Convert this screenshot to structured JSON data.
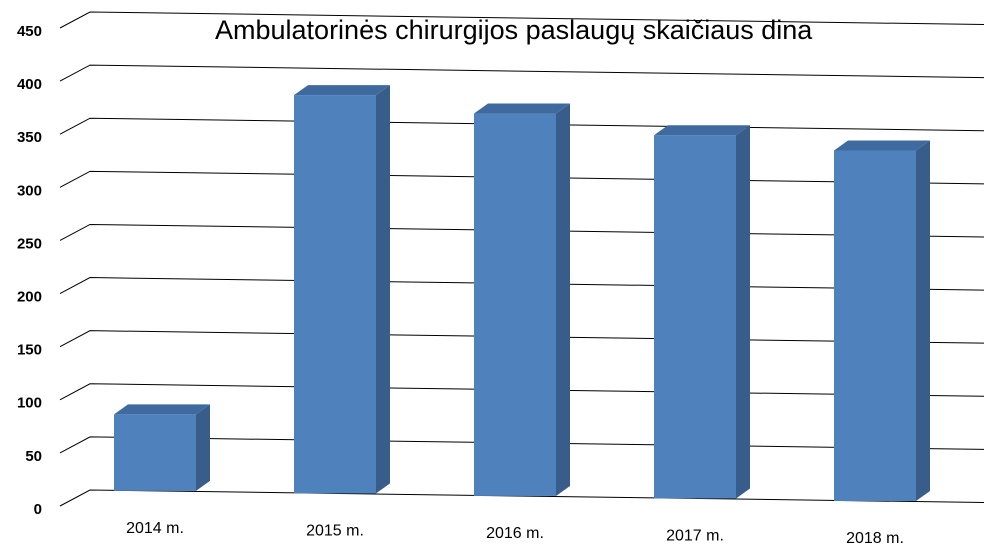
{
  "chart_data": {
    "type": "bar3d",
    "title": "Ambulatorinės  chirurgijos paslaugų skaičiaus dina",
    "categories": [
      "2014 m.",
      "2015 m.",
      "2016 m.",
      "2017 m.",
      "2018 m."
    ],
    "values": [
      72,
      375,
      360,
      342,
      330
    ],
    "color": "#4f81bd",
    "ylim": [
      0,
      450
    ],
    "yticks": [
      0,
      50,
      100,
      150,
      200,
      250,
      300,
      350,
      400,
      450
    ],
    "grid": true
  }
}
